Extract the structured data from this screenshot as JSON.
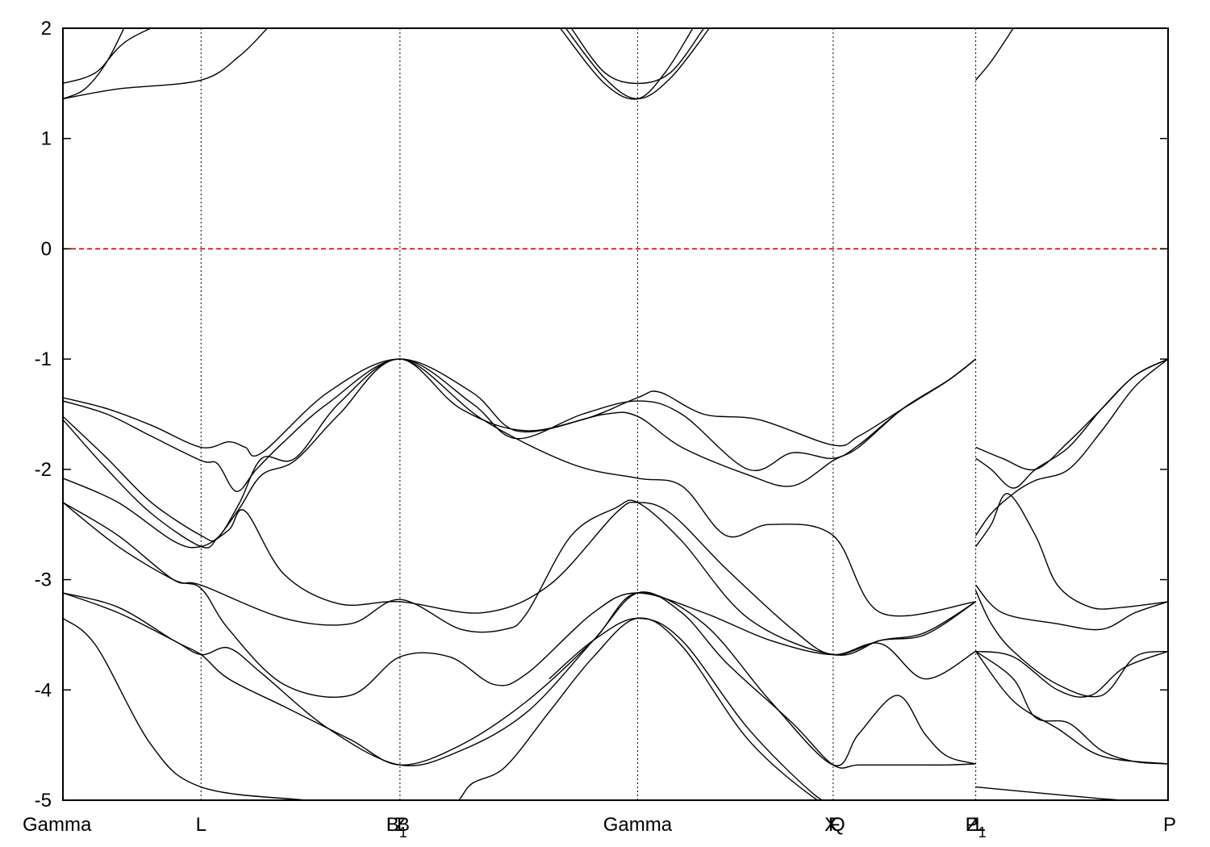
{
  "chart_data": {
    "type": "line",
    "title": "",
    "xlabel": "",
    "ylabel": "",
    "ylim": [
      -5,
      2
    ],
    "y_ticks": [
      2,
      1,
      0,
      -1,
      -2,
      -3,
      -4,
      -5
    ],
    "y_tick_labels": [
      "2",
      "1",
      "0",
      "-1",
      "-2",
      "-3",
      "-4",
      "-5"
    ],
    "grid": false,
    "legend": "none",
    "x_range": [
      0,
      100
    ],
    "high_symmetry_points": [
      {
        "label": "Gamma",
        "x": 0
      },
      {
        "label": "L",
        "x": 12.5
      },
      {
        "label": "B",
        "sub": "1",
        "x": 30.2
      },
      {
        "label": "Z",
        "x": 30.5
      },
      {
        "label": "B",
        "x": 30.8
      },
      {
        "label": "Gamma",
        "x": 52.0
      },
      {
        "label": "X",
        "x": 69.5
      },
      {
        "label": "F",
        "x": 69.8
      },
      {
        "label": "Q",
        "x": 70.1
      },
      {
        "label": "Z",
        "x": 82.3
      },
      {
        "label": "P",
        "sub": "1",
        "x": 82.6
      },
      {
        "label": "L",
        "x": 83.0
      },
      {
        "label": "P",
        "x": 100
      }
    ],
    "vlines_x": [
      12.5,
      30.5,
      52.0,
      69.7,
      82.6
    ],
    "fermi_level": {
      "y": 0,
      "color": "#cc0000",
      "style": "dashed"
    },
    "line_color": "#000000",
    "series": [
      {
        "x": [
          0,
          3,
          6,
          12.5,
          15,
          18
        ],
        "values": [
          1.5,
          1.6,
          1.9,
          2.2,
          2.4,
          2.6
        ]
      },
      {
        "x": [
          0,
          2,
          4,
          6
        ],
        "values": [
          1.36,
          1.45,
          1.7,
          2.1
        ]
      },
      {
        "x": [
          0,
          5,
          12.5,
          16,
          18.5
        ],
        "values": [
          1.36,
          1.45,
          1.53,
          1.75,
          2.0
        ]
      },
      {
        "x": [
          46,
          49,
          52,
          55,
          58
        ],
        "values": [
          2.0,
          1.6,
          1.5,
          1.6,
          2.0
        ]
      },
      {
        "x": [
          45.5,
          49,
          52,
          55,
          58.5
        ],
        "values": [
          2.0,
          1.55,
          1.36,
          1.55,
          2.0
        ]
      },
      {
        "x": [
          45,
          49,
          52,
          54.5,
          57
        ],
        "values": [
          2.0,
          1.5,
          1.36,
          1.6,
          2.0
        ]
      },
      {
        "x": [
          82.6,
          84,
          86
        ],
        "values": [
          1.53,
          1.7,
          2.0
        ]
      },
      {
        "x": [
          0,
          4,
          8,
          12.5,
          15,
          16.5,
          18,
          24,
          30.5,
          37,
          41,
          47,
          52,
          54,
          58,
          63,
          69.7,
          72,
          76,
          80,
          82.6
        ],
        "values": [
          -1.35,
          -1.45,
          -1.6,
          -1.8,
          -1.75,
          -1.8,
          -1.85,
          -1.3,
          -1.0,
          -1.3,
          -1.65,
          -1.55,
          -1.35,
          -1.3,
          -1.5,
          -1.55,
          -1.78,
          -1.7,
          -1.45,
          -1.2,
          -1.0
        ]
      },
      {
        "x": [
          0,
          4,
          8,
          12.5,
          14,
          15.7,
          17.5,
          20,
          24,
          30.5,
          37,
          41,
          47,
          52,
          56,
          62,
          66,
          69.7,
          72,
          76,
          80,
          82.6
        ],
        "values": [
          -1.38,
          -1.5,
          -1.7,
          -1.92,
          -1.95,
          -2.2,
          -2.0,
          -1.75,
          -1.4,
          -1.0,
          -1.4,
          -1.72,
          -1.5,
          -1.38,
          -1.5,
          -2.0,
          -1.85,
          -1.9,
          -1.78,
          -1.45,
          -1.2,
          -1.0
        ]
      },
      {
        "x": [
          0,
          4,
          8,
          12.5,
          14,
          16,
          18,
          21,
          25,
          30.5,
          36,
          42,
          49,
          52,
          56,
          62,
          66,
          69.7,
          72,
          76,
          80,
          82.6
        ],
        "values": [
          -1.52,
          -1.9,
          -2.3,
          -2.6,
          -2.62,
          -2.3,
          -1.9,
          -1.9,
          -1.4,
          -1.0,
          -1.45,
          -1.65,
          -1.5,
          -1.52,
          -1.8,
          -2.05,
          -2.15,
          -1.92,
          -1.8,
          -1.45,
          -1.2,
          -1.0
        ]
      },
      {
        "x": [
          0,
          4,
          8,
          12.5,
          14,
          16,
          18,
          21,
          25,
          30.5,
          38,
          46,
          52,
          56,
          60,
          64,
          69.7,
          74,
          82.6
        ],
        "values": [
          -1.55,
          -2.0,
          -2.4,
          -2.7,
          -2.62,
          -2.35,
          -2.05,
          -1.92,
          -1.5,
          -1.0,
          -1.55,
          -1.95,
          -2.08,
          -2.15,
          -2.6,
          -2.5,
          -2.6,
          -3.3,
          -3.2
        ]
      },
      {
        "x": [
          0,
          5,
          10,
          12.5,
          15,
          16.5,
          20,
          25,
          30.5,
          38,
          44,
          50,
          52,
          55,
          60,
          66,
          69.7,
          74,
          78,
          82.6
        ],
        "values": [
          -2.08,
          -2.3,
          -2.65,
          -2.7,
          -2.55,
          -2.38,
          -2.95,
          -3.22,
          -3.2,
          -3.3,
          -3.05,
          -2.4,
          -2.3,
          -2.4,
          -2.9,
          -3.45,
          -3.68,
          -3.55,
          -3.48,
          -3.2
        ]
      },
      {
        "x": [
          0,
          5,
          10,
          12.5,
          20,
          26,
          30.5,
          36,
          40,
          42,
          46,
          50,
          52,
          56,
          62,
          69.7,
          74,
          78,
          82.6
        ],
        "values": [
          -2.3,
          -2.6,
          -3.0,
          -3.05,
          -3.35,
          -3.4,
          -3.18,
          -3.45,
          -3.45,
          -3.3,
          -2.6,
          -2.35,
          -2.3,
          -2.65,
          -3.35,
          -3.68,
          -3.55,
          -3.5,
          -3.2
        ]
      },
      {
        "x": [
          0,
          5,
          10,
          12.5,
          15,
          20,
          26,
          30.5,
          35,
          39,
          42,
          48,
          52,
          58,
          64,
          69.7,
          74,
          78,
          82.6
        ],
        "values": [
          -2.3,
          -2.7,
          -3.0,
          -3.08,
          -3.45,
          -3.95,
          -4.05,
          -3.7,
          -3.7,
          -3.95,
          -3.85,
          -3.3,
          -3.12,
          -3.3,
          -3.55,
          -3.68,
          -3.58,
          -3.9,
          -3.65
        ]
      },
      {
        "x": [
          0,
          5,
          10,
          12.5,
          15,
          18,
          24,
          30.5,
          36,
          42,
          48,
          52,
          56,
          60,
          66,
          69.7,
          72,
          76,
          80,
          82.6
        ],
        "values": [
          -3.12,
          -3.3,
          -3.55,
          -3.68,
          -3.62,
          -3.85,
          -4.35,
          -4.68,
          -4.55,
          -4.2,
          -3.55,
          -3.12,
          -3.3,
          -3.75,
          -4.3,
          -4.68,
          -4.68,
          -4.68,
          -4.68,
          -4.67
        ]
      },
      {
        "x": [
          0,
          5,
          10,
          12.5,
          15,
          20,
          26,
          30.5,
          36,
          42,
          48,
          52,
          58,
          64,
          69.7,
          72,
          75.5,
          78,
          80,
          82.6
        ],
        "values": [
          -3.12,
          -3.25,
          -3.55,
          -3.68,
          -3.9,
          -4.15,
          -4.45,
          -4.68,
          -4.5,
          -4.1,
          -3.55,
          -3.12,
          -3.4,
          -4.1,
          -4.68,
          -4.4,
          -4.05,
          -4.4,
          -4.6,
          -4.67
        ]
      },
      {
        "x": [
          0,
          3,
          8,
          12.5,
          22,
          30,
          35,
          37,
          40,
          44,
          48,
          52,
          56,
          62,
          68,
          69.7
        ],
        "values": [
          -3.35,
          -3.6,
          -4.5,
          -4.88,
          -5.0,
          -5.05,
          -5.05,
          -4.85,
          -4.7,
          -4.2,
          -3.7,
          -3.35,
          -3.6,
          -4.45,
          -4.98,
          -5.0
        ]
      },
      {
        "x": [
          44,
          48,
          52,
          56,
          62,
          68,
          69.7
        ],
        "values": [
          -3.9,
          -3.55,
          -3.35,
          -3.55,
          -4.35,
          -4.95,
          -5.0
        ]
      },
      {
        "x": [
          82.6,
          85,
          88,
          91,
          94,
          97,
          100
        ],
        "values": [
          -1.8,
          -1.9,
          -2.0,
          -1.75,
          -1.45,
          -1.15,
          -1.0
        ]
      },
      {
        "x": [
          82.6,
          84,
          86,
          88,
          91,
          94,
          97,
          100
        ],
        "values": [
          -1.9,
          -2.0,
          -2.17,
          -2.0,
          -1.8,
          -1.45,
          -1.15,
          -1.0
        ]
      },
      {
        "x": [
          82.6,
          84,
          86,
          88,
          91,
          94,
          97,
          100
        ],
        "values": [
          -2.6,
          -2.4,
          -2.22,
          -2.1,
          -2.0,
          -1.65,
          -1.25,
          -1.0
        ]
      },
      {
        "x": [
          82.6,
          84,
          85.5,
          88,
          90,
          93,
          96,
          100
        ],
        "values": [
          -2.7,
          -2.5,
          -2.22,
          -2.6,
          -3.05,
          -3.25,
          -3.25,
          -3.2
        ]
      },
      {
        "x": [
          82.6,
          85,
          90,
          94,
          97,
          100
        ],
        "values": [
          -3.05,
          -3.3,
          -3.4,
          -3.45,
          -3.3,
          -3.2
        ]
      },
      {
        "x": [
          82.6,
          84,
          86,
          90,
          94,
          97,
          100
        ],
        "values": [
          -3.1,
          -3.4,
          -3.65,
          -3.95,
          -4.05,
          -3.7,
          -3.65
        ]
      },
      {
        "x": [
          82.6,
          86,
          90,
          93,
          96,
          100
        ],
        "values": [
          -3.65,
          -3.7,
          -4.0,
          -4.05,
          -3.8,
          -3.65
        ]
      },
      {
        "x": [
          82.6,
          86,
          88,
          91,
          94,
          97,
          100
        ],
        "values": [
          -3.65,
          -3.9,
          -4.25,
          -4.3,
          -4.55,
          -4.65,
          -4.67
        ]
      },
      {
        "x": [
          82.6,
          86,
          90,
          94,
          100
        ],
        "values": [
          -3.65,
          -4.1,
          -4.35,
          -4.6,
          -4.67
        ]
      },
      {
        "x": [
          82.6,
          90,
          96,
          100
        ],
        "values": [
          -4.88,
          -4.95,
          -5.0,
          -5.0
        ]
      }
    ]
  }
}
